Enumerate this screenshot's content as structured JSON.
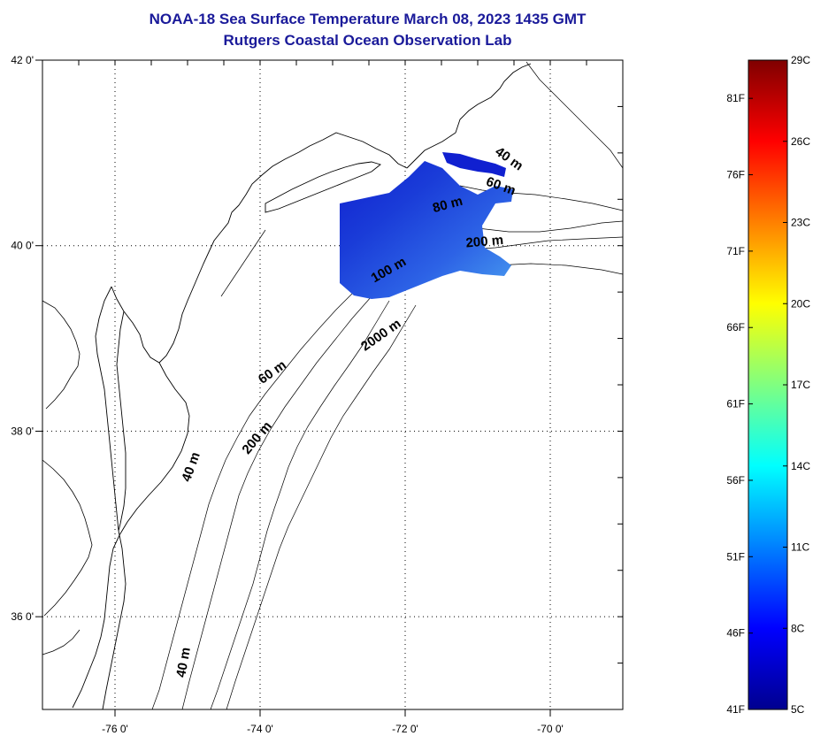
{
  "header": {
    "title": "NOAA-18 Sea Surface Temperature March 08, 2023 1435 GMT",
    "subtitle": "Rutgers Coastal Ocean Observation Lab"
  },
  "map": {
    "lon_range": [
      -77,
      -69
    ],
    "lat_range": [
      35,
      42
    ],
    "lon_ticks": [
      {
        "value": -76,
        "label": "-76 0'"
      },
      {
        "value": -74,
        "label": "-74 0'"
      },
      {
        "value": -72,
        "label": "-72 0'"
      },
      {
        "value": -70,
        "label": "-70 0'"
      }
    ],
    "lat_ticks": [
      {
        "value": 42,
        "label": "42 0'"
      },
      {
        "value": 40,
        "label": "40 0'"
      },
      {
        "value": 38,
        "label": "38 0'"
      },
      {
        "value": 36,
        "label": "36 0'"
      }
    ],
    "grid": "dotted",
    "depth_labels": [
      {
        "text": "40 m",
        "lon": -70.6,
        "lat": 40.9,
        "rot": 35
      },
      {
        "text": "60 m",
        "lon": -70.7,
        "lat": 40.6,
        "rot": 20
      },
      {
        "text": "80 m",
        "lon": -71.4,
        "lat": 40.4,
        "rot": -15
      },
      {
        "text": "200 m",
        "lon": -70.9,
        "lat": 40.0,
        "rot": -5
      },
      {
        "text": "100 m",
        "lon": -72.2,
        "lat": 39.7,
        "rot": -30
      },
      {
        "text": "2000 m",
        "lon": -72.3,
        "lat": 39.0,
        "rot": -35
      },
      {
        "text": "60 m",
        "lon": -73.8,
        "lat": 38.6,
        "rot": -35
      },
      {
        "text": "200 m",
        "lon": -74.0,
        "lat": 37.9,
        "rot": -50
      },
      {
        "text": "40 m",
        "lon": -74.9,
        "lat": 37.6,
        "rot": -70
      },
      {
        "text": "40 m",
        "lon": -75.0,
        "lat": 35.5,
        "rot": -80
      }
    ],
    "sst_patch": {
      "colors": [
        "#1020d0",
        "#1a3cd8",
        "#2d63e6",
        "#4aa0f0"
      ]
    }
  },
  "colorbar": {
    "colors": [
      "#7f0000",
      "#ff0000",
      "#ff8000",
      "#ffff00",
      "#80ff80",
      "#00ffff",
      "#0080ff",
      "#0000ff",
      "#00008f"
    ],
    "celsius_ticks": [
      "29C",
      "26C",
      "23C",
      "20C",
      "17C",
      "14C",
      "11C",
      "8C",
      "5C"
    ],
    "fahrenheit_ticks": [
      "81F",
      "76F",
      "71F",
      "66F",
      "61F",
      "56F",
      "51F",
      "46F",
      "41F"
    ]
  }
}
